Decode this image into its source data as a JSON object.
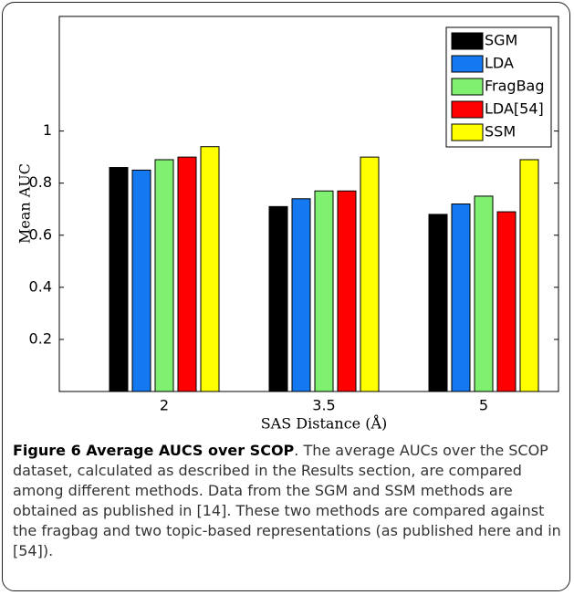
{
  "chart_data": {
    "type": "bar",
    "y_label": "Mean AUC",
    "x_label": "SAS Distance (Å)",
    "categories": [
      "2",
      "3.5",
      "5"
    ],
    "series": [
      {
        "name": "SGM",
        "color": "#000000",
        "values": [
          0.86,
          0.71,
          0.68
        ]
      },
      {
        "name": "LDA",
        "color": "#1478f0",
        "values": [
          0.85,
          0.74,
          0.72
        ]
      },
      {
        "name": "FragBag",
        "color": "#80f070",
        "values": [
          0.89,
          0.77,
          0.75
        ]
      },
      {
        "name": "LDA[54]",
        "color": "#ff0000",
        "values": [
          0.9,
          0.77,
          0.69
        ]
      },
      {
        "name": "SSM",
        "color": "#ffff00",
        "values": [
          0.94,
          0.9,
          0.89
        ]
      }
    ],
    "ylim": [
      0,
      1.44
    ],
    "yticks": [
      0.2,
      0.4,
      0.6,
      0.8,
      1
    ],
    "legend": "upper right",
    "caption_title": "Figure 6 Average AUCS over SCOP",
    "caption_text": ". The average AUCs over the SCOP dataset, calculated as described in the Results section, are compared among different methods. Data from the SGM and SSM methods are obtained as published in [14]. These two methods are compared against the fragbag and two topic-based representations (as published here and in [54])."
  }
}
